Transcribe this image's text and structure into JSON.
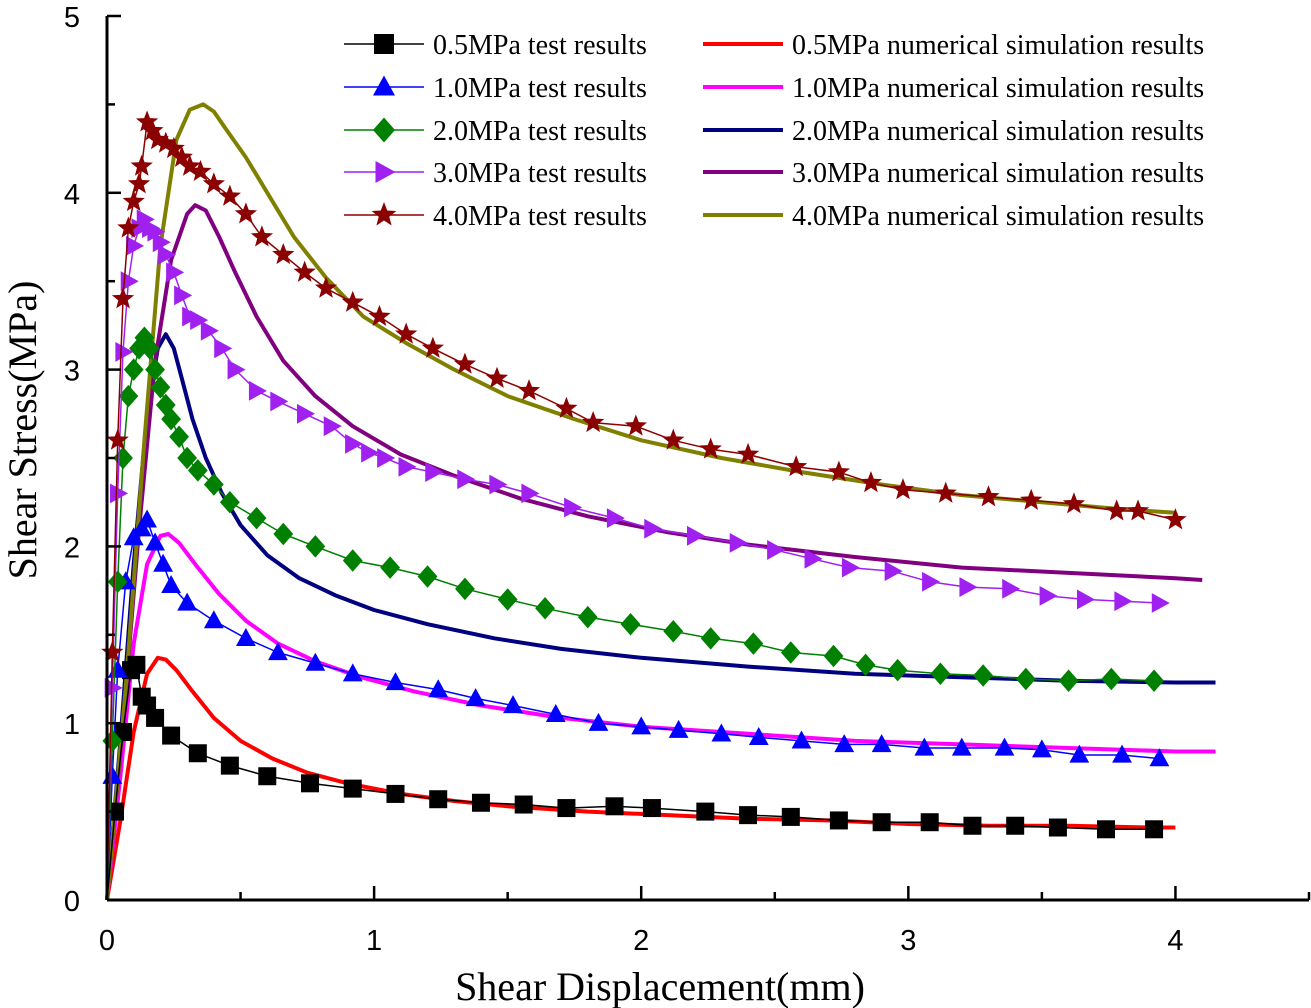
{
  "chart_data": {
    "type": "line",
    "xlabel": "Shear Displacement(mm)",
    "ylabel": "Shear Stress(MPa)",
    "xlim": [
      0,
      4.5
    ],
    "ylim": [
      0,
      5
    ],
    "xticks": [
      "0",
      "1",
      "2",
      "3",
      "4"
    ],
    "yticks": [
      "0",
      "1",
      "2",
      "3",
      "4",
      "5"
    ],
    "grid": false,
    "legend_position": "top-right",
    "series": [
      {
        "name": "0.5MPa test results",
        "kind": "test",
        "color": "#000000",
        "marker": "square",
        "x": [
          0,
          0.03,
          0.06,
          0.09,
          0.11,
          0.13,
          0.15,
          0.18,
          0.24,
          0.34,
          0.46,
          0.6,
          0.76,
          0.92,
          1.08,
          1.24,
          1.4,
          1.56,
          1.72,
          1.9,
          2.04,
          2.24,
          2.4,
          2.56,
          2.74,
          2.9,
          3.08,
          3.24,
          3.4,
          3.56,
          3.74,
          3.92
        ],
        "y": [
          0,
          0.5,
          0.95,
          1.3,
          1.33,
          1.15,
          1.1,
          1.03,
          0.93,
          0.83,
          0.76,
          0.7,
          0.66,
          0.63,
          0.6,
          0.57,
          0.55,
          0.54,
          0.52,
          0.53,
          0.52,
          0.5,
          0.48,
          0.47,
          0.45,
          0.44,
          0.44,
          0.42,
          0.42,
          0.41,
          0.4,
          0.4
        ]
      },
      {
        "name": "0.5MPa numerical simulation results",
        "kind": "sim",
        "color": "#ff0000",
        "x": [
          0,
          0.05,
          0.1,
          0.15,
          0.19,
          0.22,
          0.26,
          0.32,
          0.4,
          0.5,
          0.62,
          0.75,
          0.9,
          1.1,
          1.3,
          1.5,
          1.8,
          2.1,
          2.4,
          2.7,
          3.0,
          3.3,
          3.6,
          3.9,
          4.0
        ],
        "y": [
          0,
          0.45,
          0.95,
          1.28,
          1.37,
          1.36,
          1.3,
          1.18,
          1.03,
          0.9,
          0.8,
          0.72,
          0.66,
          0.6,
          0.56,
          0.53,
          0.5,
          0.48,
          0.46,
          0.45,
          0.43,
          0.42,
          0.42,
          0.41,
          0.41
        ]
      },
      {
        "name": "1.0MPa test results",
        "kind": "test",
        "color": "#0000ff",
        "marker": "triangle-up",
        "x": [
          0,
          0.02,
          0.04,
          0.07,
          0.1,
          0.13,
          0.15,
          0.18,
          0.21,
          0.24,
          0.3,
          0.4,
          0.52,
          0.64,
          0.78,
          0.92,
          1.08,
          1.24,
          1.38,
          1.52,
          1.68,
          1.84,
          2.0,
          2.14,
          2.3,
          2.44,
          2.6,
          2.76,
          2.9,
          3.06,
          3.2,
          3.36,
          3.5,
          3.64,
          3.8,
          3.94
        ],
        "y": [
          0,
          0.7,
          1.3,
          1.8,
          2.05,
          2.1,
          2.15,
          2.02,
          1.9,
          1.78,
          1.68,
          1.58,
          1.48,
          1.4,
          1.34,
          1.28,
          1.23,
          1.19,
          1.14,
          1.1,
          1.05,
          1.0,
          0.98,
          0.96,
          0.94,
          0.92,
          0.9,
          0.88,
          0.88,
          0.86,
          0.86,
          0.86,
          0.85,
          0.82,
          0.82,
          0.8
        ]
      },
      {
        "name": "1.0MPa numerical simulation results",
        "kind": "sim",
        "color": "#ff00ff",
        "x": [
          0,
          0.05,
          0.1,
          0.15,
          0.2,
          0.23,
          0.27,
          0.33,
          0.42,
          0.52,
          0.64,
          0.78,
          0.95,
          1.15,
          1.4,
          1.7,
          2.0,
          2.4,
          2.8,
          3.2,
          3.6,
          4.0,
          4.15
        ],
        "y": [
          0,
          0.7,
          1.45,
          1.9,
          2.06,
          2.07,
          2.02,
          1.9,
          1.73,
          1.58,
          1.45,
          1.35,
          1.26,
          1.18,
          1.1,
          1.03,
          0.98,
          0.94,
          0.9,
          0.88,
          0.86,
          0.84,
          0.84
        ]
      },
      {
        "name": "2.0MPa test results",
        "kind": "test",
        "color": "#008000",
        "marker": "diamond",
        "x": [
          0,
          0.02,
          0.04,
          0.06,
          0.08,
          0.1,
          0.12,
          0.14,
          0.16,
          0.18,
          0.2,
          0.22,
          0.24,
          0.27,
          0.3,
          0.34,
          0.4,
          0.46,
          0.56,
          0.66,
          0.78,
          0.92,
          1.06,
          1.2,
          1.34,
          1.5,
          1.64,
          1.8,
          1.96,
          2.12,
          2.26,
          2.42,
          2.56,
          2.72,
          2.84,
          2.96,
          3.12,
          3.28,
          3.44,
          3.6,
          3.76,
          3.92
        ],
        "y": [
          0,
          0.9,
          1.8,
          2.5,
          2.85,
          3.0,
          3.12,
          3.18,
          3.12,
          3.0,
          2.9,
          2.8,
          2.72,
          2.62,
          2.5,
          2.43,
          2.35,
          2.25,
          2.16,
          2.07,
          2.0,
          1.92,
          1.88,
          1.83,
          1.76,
          1.7,
          1.65,
          1.6,
          1.56,
          1.52,
          1.48,
          1.45,
          1.4,
          1.38,
          1.33,
          1.3,
          1.28,
          1.27,
          1.25,
          1.24,
          1.25,
          1.24
        ]
      },
      {
        "name": "2.0MPa numerical simulation results",
        "kind": "sim",
        "color": "#000080",
        "x": [
          0,
          0.05,
          0.1,
          0.15,
          0.19,
          0.22,
          0.25,
          0.28,
          0.32,
          0.37,
          0.43,
          0.5,
          0.6,
          0.72,
          0.86,
          1.0,
          1.2,
          1.45,
          1.7,
          2.0,
          2.4,
          2.8,
          3.2,
          3.6,
          4.0,
          4.15
        ],
        "y": [
          0,
          0.9,
          1.9,
          2.75,
          3.12,
          3.2,
          3.12,
          2.95,
          2.72,
          2.5,
          2.3,
          2.12,
          1.95,
          1.82,
          1.72,
          1.64,
          1.56,
          1.48,
          1.42,
          1.37,
          1.32,
          1.28,
          1.26,
          1.24,
          1.23,
          1.23
        ]
      },
      {
        "name": "3.0MPa test results",
        "kind": "test",
        "color": "#a020f0",
        "marker": "triangle-right",
        "x": [
          0,
          0.02,
          0.04,
          0.06,
          0.08,
          0.1,
          0.12,
          0.14,
          0.16,
          0.18,
          0.2,
          0.22,
          0.25,
          0.28,
          0.31,
          0.34,
          0.38,
          0.43,
          0.48,
          0.56,
          0.64,
          0.74,
          0.84,
          0.92,
          0.98,
          1.04,
          1.12,
          1.22,
          1.34,
          1.46,
          1.58,
          1.74,
          1.9,
          2.04,
          2.2,
          2.36,
          2.5,
          2.64,
          2.78,
          2.94,
          3.08,
          3.22,
          3.38,
          3.52,
          3.66,
          3.8,
          3.94
        ],
        "y": [
          0,
          1.2,
          2.3,
          3.1,
          3.5,
          3.7,
          3.8,
          3.85,
          3.8,
          3.78,
          3.72,
          3.65,
          3.55,
          3.42,
          3.3,
          3.28,
          3.22,
          3.12,
          3.0,
          2.88,
          2.82,
          2.75,
          2.68,
          2.58,
          2.53,
          2.5,
          2.45,
          2.42,
          2.38,
          2.35,
          2.3,
          2.22,
          2.16,
          2.1,
          2.06,
          2.02,
          1.98,
          1.93,
          1.88,
          1.86,
          1.8,
          1.77,
          1.76,
          1.72,
          1.7,
          1.69,
          1.68
        ]
      },
      {
        "name": "3.0MPa numerical simulation results",
        "kind": "sim",
        "color": "#800080",
        "x": [
          0,
          0.06,
          0.12,
          0.18,
          0.24,
          0.3,
          0.33,
          0.37,
          0.42,
          0.48,
          0.56,
          0.66,
          0.78,
          0.92,
          1.1,
          1.3,
          1.55,
          1.8,
          2.1,
          2.4,
          2.8,
          3.2,
          3.6,
          4.0,
          4.1
        ],
        "y": [
          0,
          1.0,
          2.1,
          3.05,
          3.62,
          3.88,
          3.93,
          3.9,
          3.75,
          3.55,
          3.3,
          3.05,
          2.85,
          2.68,
          2.52,
          2.4,
          2.27,
          2.17,
          2.08,
          2.01,
          1.94,
          1.88,
          1.85,
          1.82,
          1.81
        ]
      },
      {
        "name": "4.0MPa test results",
        "kind": "test",
        "color": "#8b0000",
        "marker": "star",
        "x": [
          0,
          0.02,
          0.04,
          0.06,
          0.08,
          0.1,
          0.12,
          0.13,
          0.15,
          0.17,
          0.19,
          0.22,
          0.25,
          0.28,
          0.31,
          0.35,
          0.4,
          0.46,
          0.52,
          0.58,
          0.66,
          0.74,
          0.82,
          0.92,
          1.02,
          1.12,
          1.22,
          1.34,
          1.46,
          1.58,
          1.72,
          1.82,
          1.98,
          2.12,
          2.26,
          2.4,
          2.58,
          2.74,
          2.86,
          2.98,
          3.14,
          3.3,
          3.46,
          3.62,
          3.78,
          3.86,
          4.0
        ],
        "y": [
          0,
          1.4,
          2.6,
          3.4,
          3.8,
          3.95,
          4.05,
          4.15,
          4.4,
          4.35,
          4.3,
          4.28,
          4.25,
          4.2,
          4.15,
          4.12,
          4.05,
          3.98,
          3.88,
          3.75,
          3.65,
          3.55,
          3.46,
          3.38,
          3.3,
          3.2,
          3.12,
          3.03,
          2.95,
          2.88,
          2.78,
          2.7,
          2.68,
          2.6,
          2.55,
          2.52,
          2.45,
          2.42,
          2.36,
          2.32,
          2.3,
          2.28,
          2.26,
          2.24,
          2.2,
          2.2,
          2.15
        ]
      },
      {
        "name": "4.0MPa numerical simulation results",
        "kind": "sim",
        "color": "#808000",
        "x": [
          0,
          0.07,
          0.14,
          0.2,
          0.26,
          0.31,
          0.36,
          0.4,
          0.45,
          0.52,
          0.6,
          0.7,
          0.82,
          0.96,
          1.12,
          1.3,
          1.5,
          1.75,
          2.0,
          2.3,
          2.6,
          2.9,
          3.2,
          3.5,
          3.8,
          4.0
        ],
        "y": [
          0,
          1.2,
          2.6,
          3.7,
          4.3,
          4.47,
          4.5,
          4.46,
          4.35,
          4.2,
          4.0,
          3.75,
          3.52,
          3.3,
          3.15,
          3.0,
          2.85,
          2.72,
          2.6,
          2.5,
          2.42,
          2.35,
          2.29,
          2.25,
          2.21,
          2.19
        ]
      }
    ]
  }
}
